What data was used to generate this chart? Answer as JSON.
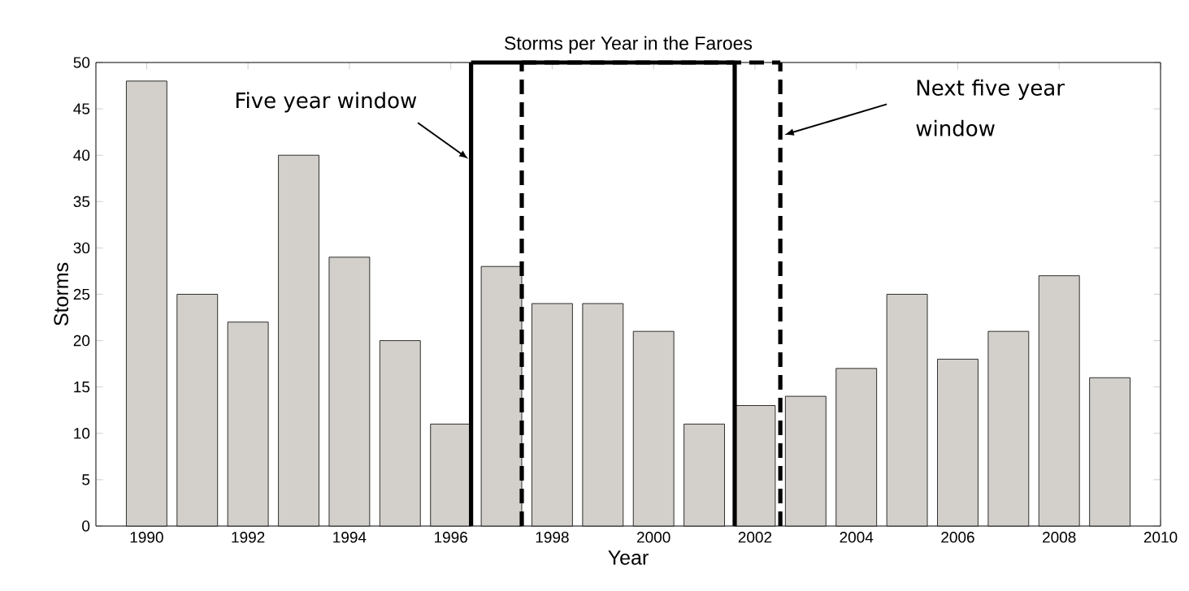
{
  "chart_data": {
    "type": "bar",
    "title": "Storms per Year in the Faroes",
    "xlabel": "Year",
    "ylabel": "Storms",
    "x": [
      1990,
      1991,
      1992,
      1993,
      1994,
      1995,
      1996,
      1997,
      1998,
      1999,
      2000,
      2001,
      2002,
      2003,
      2004,
      2005,
      2006,
      2007,
      2008,
      2009
    ],
    "values": [
      48,
      25,
      22,
      40,
      29,
      20,
      11,
      28,
      24,
      24,
      21,
      11,
      13,
      14,
      17,
      25,
      18,
      21,
      27,
      16
    ],
    "color": "#d3d0cb",
    "xlim": [
      1989,
      2010
    ],
    "xticks": [
      1990,
      1992,
      1994,
      1996,
      1998,
      2000,
      2002,
      2004,
      2006,
      2008,
      2010
    ],
    "ylim": [
      0,
      50
    ],
    "yticks": [
      0,
      5,
      10,
      15,
      20,
      25,
      30,
      35,
      40,
      45,
      50
    ],
    "ref_lines": [
      {
        "axis": "x",
        "value": 1996.4,
        "label": "Five year window",
        "line_style": "solid"
      },
      {
        "axis": "x",
        "value": 1997.4,
        "line_style": "dashed"
      },
      {
        "axis": "x",
        "value": 2001.6,
        "line_style": "solid"
      },
      {
        "axis": "x",
        "value": 2002.5,
        "line_style": "dashed"
      }
    ],
    "annotations": [
      "Next five year window"
    ]
  }
}
